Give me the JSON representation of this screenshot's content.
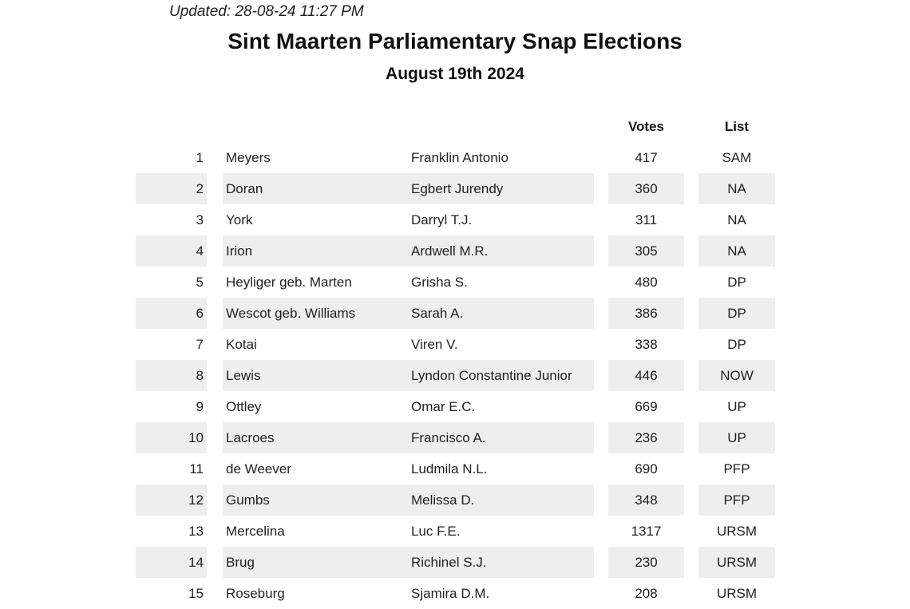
{
  "header": {
    "updated": "Updated: 28-08-24 11:27 PM",
    "title": "Sint Maarten Parliamentary Snap Elections",
    "subtitle": "August 19th 2024"
  },
  "table": {
    "columns": {
      "votes": "Votes",
      "list": "List"
    },
    "rows": [
      {
        "rank": "1",
        "last": "Meyers",
        "first": "Franklin Antonio",
        "votes": "417",
        "list": "SAM"
      },
      {
        "rank": "2",
        "last": "Doran",
        "first": "Egbert Jurendy",
        "votes": "360",
        "list": "NA"
      },
      {
        "rank": "3",
        "last": "York",
        "first": "Darryl T.J.",
        "votes": "311",
        "list": "NA"
      },
      {
        "rank": "4",
        "last": "Irion",
        "first": "Ardwell M.R.",
        "votes": "305",
        "list": "NA"
      },
      {
        "rank": "5",
        "last": "Heyliger geb. Marten",
        "first": "Grisha S.",
        "votes": "480",
        "list": "DP"
      },
      {
        "rank": "6",
        "last": "Wescot geb. Williams",
        "first": "Sarah A.",
        "votes": "386",
        "list": "DP"
      },
      {
        "rank": "7",
        "last": "Kotai",
        "first": "Viren V.",
        "votes": "338",
        "list": "DP"
      },
      {
        "rank": "8",
        "last": "Lewis",
        "first": "Lyndon Constantine Junior",
        "votes": "446",
        "list": "NOW"
      },
      {
        "rank": "9",
        "last": "Ottley",
        "first": "Omar E.C.",
        "votes": "669",
        "list": "UP"
      },
      {
        "rank": "10",
        "last": "Lacroes",
        "first": "Francisco A.",
        "votes": "236",
        "list": "UP"
      },
      {
        "rank": "11",
        "last": "de Weever",
        "first": "Ludmila N.L.",
        "votes": "690",
        "list": "PFP"
      },
      {
        "rank": "12",
        "last": "Gumbs",
        "first": "Melissa D.",
        "votes": "348",
        "list": "PFP"
      },
      {
        "rank": "13",
        "last": "Mercelina",
        "first": "Luc F.E.",
        "votes": "1317",
        "list": "URSM"
      },
      {
        "rank": "14",
        "last": "Brug",
        "first": "Richinel S.J.",
        "votes": "230",
        "list": "URSM"
      },
      {
        "rank": "15",
        "last": "Roseburg",
        "first": "Sjamira D.M.",
        "votes": "208",
        "list": "URSM"
      }
    ]
  },
  "colors": {
    "row_shade": "#eeeeee",
    "text": "#222222"
  }
}
